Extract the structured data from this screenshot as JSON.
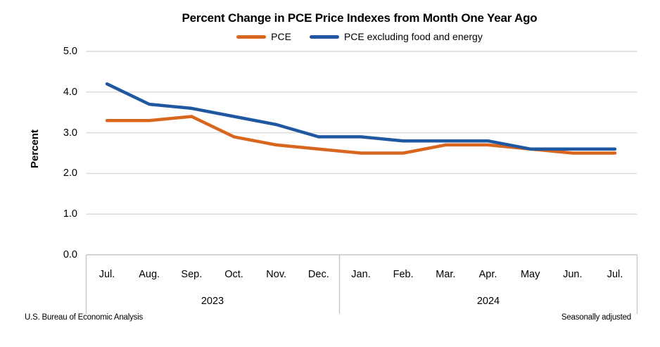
{
  "header": {
    "title": "Percent Change in PCE Price Indexes from Month One Year Ago"
  },
  "chart_data": {
    "type": "line",
    "title": "Percent Change in PCE Price Indexes from Month One Year Ago",
    "xlabel": "",
    "ylabel": "Percent",
    "ylim": [
      0.0,
      5.0
    ],
    "ytick_labels": [
      "5.0",
      "4.0",
      "3.0",
      "2.0",
      "1.0",
      "0.0"
    ],
    "grid": true,
    "legend_position": "top-center",
    "categories": [
      "Jul.",
      "Aug.",
      "Sep.",
      "Oct.",
      "Nov.",
      "Dec.",
      "Jan.",
      "Feb.",
      "Mar.",
      "Apr.",
      "May",
      "Jun.",
      "Jul."
    ],
    "years": [
      {
        "label": "2023",
        "start_index": 0,
        "end_index": 5
      },
      {
        "label": "2024",
        "start_index": 6,
        "end_index": 12
      }
    ],
    "series": [
      {
        "name": "PCE",
        "key": "pce",
        "color": "#D9661E",
        "values": [
          3.3,
          3.3,
          3.4,
          2.9,
          2.7,
          2.6,
          2.5,
          2.5,
          2.7,
          2.7,
          2.6,
          2.5,
          2.5
        ]
      },
      {
        "name": "PCE excluding food and energy",
        "key": "core-pce",
        "color": "#1F58A0",
        "values": [
          4.2,
          3.7,
          3.6,
          3.4,
          3.2,
          2.9,
          2.9,
          2.8,
          2.8,
          2.8,
          2.6,
          2.6,
          2.6
        ]
      }
    ]
  },
  "footer": {
    "source": "U.S. Bureau of Economic Analysis",
    "note": "Seasonally adjusted"
  },
  "colors": {
    "pce_line": "#D9661E",
    "core_pce_line": "#1F58A0",
    "gridline": "#D9D9D9",
    "axis_box": "#C6C6C6",
    "text": "#000000"
  }
}
